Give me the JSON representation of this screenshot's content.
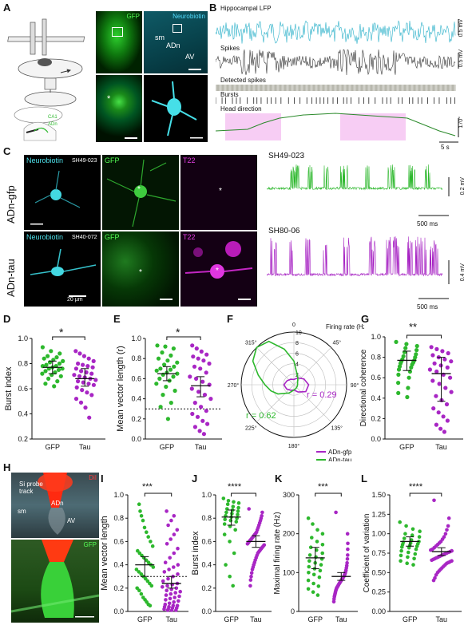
{
  "panels": {
    "A": {
      "letter": "A",
      "micro_labels": {
        "gfp": "GFP",
        "neurobiotin": "Neurobiotin",
        "sm": "sm",
        "adn": "ADn",
        "av": "AV",
        "star": "*"
      },
      "schematic_labels": {
        "ca1": "CA1",
        "adn": "ADn"
      }
    },
    "B": {
      "letter": "B",
      "traces": {
        "lfp": "Hippocampal LFP",
        "spikes": "Spikes",
        "detected": "Detected spikes",
        "bursts": "Bursts",
        "hd": "Head direction"
      },
      "scales": {
        "lfp": "0.5 mV",
        "spikes": "0.5 mV",
        "hd": "170°",
        "time": "5 s"
      }
    },
    "C": {
      "letter": "C",
      "rows": [
        {
          "label": "ADn-gfp",
          "id": "SH49-023",
          "trace_id": "SH49-023",
          "vscale": "0.2 mV",
          "tscale": "500 ms"
        },
        {
          "label": "ADn-tau",
          "id": "SH40-072",
          "trace_id": "SH80-06",
          "vscale": "0.4 mV",
          "tscale": "500 ms"
        }
      ],
      "channels": {
        "neurobiotin": "Neurobiotin",
        "gfp": "GFP",
        "t22": "T22"
      },
      "scalebar": "20 µm",
      "star": "*"
    },
    "D": {
      "letter": "D",
      "star": "*"
    },
    "E": {
      "letter": "E",
      "star": "*"
    },
    "F": {
      "letter": "F",
      "firing_label": "Firing rate (Hz)",
      "angles": [
        "0",
        "45°",
        "90°",
        "135°",
        "180°",
        "225°",
        "270°",
        "315°"
      ],
      "rings": [
        "2",
        "4",
        "6",
        "8",
        "10"
      ],
      "r_tau": "r = 0.62",
      "r_gfp": "r = 0.29",
      "legend": [
        "ADn-gfp",
        "ADn-tau"
      ]
    },
    "G": {
      "letter": "G",
      "stars": "**"
    },
    "H": {
      "letter": "H",
      "dil": "DiI",
      "probe": "Si probe track",
      "sm": "sm",
      "adn": "ADn",
      "av": "AV",
      "gfp": "GFP"
    },
    "I": {
      "letter": "I",
      "stars": "***"
    },
    "J": {
      "letter": "J",
      "stars": "****"
    },
    "K": {
      "letter": "K",
      "stars": "***"
    },
    "L": {
      "letter": "L",
      "stars": "****"
    }
  },
  "colors": {
    "gfp": "#2db82d",
    "tau": "#a826c4",
    "cyan": "#38d6e0",
    "lfp": "#2ab0c9",
    "magenta": "#d21ad2",
    "pink": "#f7cdf4",
    "hd": "#2b8a2b"
  },
  "chart_data": [
    {
      "panel": "D",
      "type": "scatter",
      "ylabel": "Burst index",
      "categories": [
        "GFP",
        "Tau"
      ],
      "ylim": [
        0.2,
        1.0
      ],
      "yticks": [
        0.2,
        0.4,
        0.6,
        0.8,
        1.0
      ],
      "series": [
        {
          "values": [
            0.93,
            0.9,
            0.88,
            0.86,
            0.85,
            0.84,
            0.83,
            0.82,
            0.81,
            0.8,
            0.79,
            0.78,
            0.78,
            0.77,
            0.76,
            0.76,
            0.75,
            0.74,
            0.73,
            0.72,
            0.71,
            0.7,
            0.68,
            0.66,
            0.64,
            0.62
          ],
          "mean": 0.77,
          "err": [
            0.72,
            0.82
          ]
        },
        {
          "values": [
            0.9,
            0.88,
            0.86,
            0.84,
            0.82,
            0.8,
            0.79,
            0.78,
            0.77,
            0.76,
            0.74,
            0.73,
            0.72,
            0.71,
            0.7,
            0.69,
            0.68,
            0.67,
            0.66,
            0.65,
            0.64,
            0.63,
            0.61,
            0.59,
            0.57,
            0.55,
            0.52,
            0.49,
            0.45,
            0.37
          ],
          "mean": 0.68,
          "err": [
            0.62,
            0.76
          ]
        }
      ]
    },
    {
      "panel": "E",
      "type": "scatter",
      "ylabel": "Mean vector length (r)",
      "categories": [
        "GFP",
        "Tau"
      ],
      "ylim": [
        0.0,
        1.0
      ],
      "yticks": [
        0.0,
        0.2,
        0.4,
        0.6,
        0.8,
        1.0
      ],
      "reference_line": 0.3,
      "series": [
        {
          "values": [
            0.93,
            0.92,
            0.9,
            0.86,
            0.83,
            0.8,
            0.78,
            0.76,
            0.74,
            0.72,
            0.7,
            0.69,
            0.68,
            0.66,
            0.65,
            0.64,
            0.62,
            0.6,
            0.58,
            0.55,
            0.52,
            0.48,
            0.44,
            0.36,
            0.32,
            0.2
          ],
          "mean": 0.65,
          "err": [
            0.58,
            0.72
          ]
        },
        {
          "values": [
            0.93,
            0.9,
            0.87,
            0.84,
            0.82,
            0.8,
            0.78,
            0.75,
            0.72,
            0.7,
            0.66,
            0.62,
            0.6,
            0.57,
            0.54,
            0.5,
            0.47,
            0.44,
            0.4,
            0.36,
            0.32,
            0.28,
            0.25,
            0.22,
            0.18,
            0.15,
            0.12,
            0.08,
            0.05
          ],
          "mean": 0.53,
          "err": [
            0.42,
            0.62
          ]
        }
      ]
    },
    {
      "panel": "F",
      "type": "polar",
      "radial_max": 10,
      "series": [
        {
          "name": "ADn-gfp",
          "angles_deg": [
            0,
            30,
            60,
            90,
            120,
            150,
            180,
            210,
            240,
            270,
            300,
            330
          ],
          "rates": [
            1.0,
            1.5,
            2.2,
            2.8,
            2.6,
            1.6,
            1.0,
            1.2,
            1.6,
            1.9,
            1.5,
            1.2
          ]
        },
        {
          "name": "ADn-tau",
          "angles_deg": [
            0,
            15,
            30,
            60,
            90,
            120,
            150,
            180,
            210,
            240,
            255,
            270,
            285,
            300,
            315,
            330,
            345
          ],
          "rates": [
            4.5,
            2.2,
            1.5,
            0.8,
            0.7,
            0.7,
            0.8,
            1.0,
            1.8,
            3.5,
            4.5,
            5.5,
            7.0,
            9.0,
            10.0,
            9.5,
            7.0
          ]
        }
      ]
    },
    {
      "panel": "G",
      "type": "scatter",
      "ylabel": "Directional coherence",
      "categories": [
        "GFP",
        "Tau"
      ],
      "ylim": [
        0.0,
        1.0
      ],
      "yticks": [
        0.0,
        0.2,
        0.4,
        0.6,
        0.8,
        1.0
      ],
      "series": [
        {
          "values": [
            0.95,
            0.93,
            0.91,
            0.89,
            0.87,
            0.85,
            0.83,
            0.81,
            0.8,
            0.78,
            0.77,
            0.76,
            0.75,
            0.74,
            0.73,
            0.71,
            0.7,
            0.68,
            0.66,
            0.63,
            0.6,
            0.55,
            0.5,
            0.45,
            0.41
          ],
          "mean": 0.77,
          "err": [
            0.67,
            0.86
          ]
        },
        {
          "values": [
            0.9,
            0.88,
            0.86,
            0.84,
            0.82,
            0.8,
            0.78,
            0.76,
            0.74,
            0.72,
            0.7,
            0.68,
            0.66,
            0.63,
            0.6,
            0.57,
            0.54,
            0.5,
            0.46,
            0.42,
            0.38,
            0.34,
            0.3,
            0.26,
            0.22,
            0.18,
            0.14,
            0.1,
            0.07
          ],
          "mean": 0.64,
          "err": [
            0.37,
            0.8
          ]
        }
      ]
    },
    {
      "panel": "I",
      "type": "scatter",
      "ylabel": "Mean vector length",
      "categories": [
        "GFP",
        "Tau"
      ],
      "ylim": [
        0.0,
        1.0
      ],
      "yticks": [
        0.0,
        0.2,
        0.4,
        0.6,
        0.8,
        1.0
      ],
      "reference_line": 0.3,
      "series": [
        {
          "values": [
            0.92,
            0.86,
            0.82,
            0.78,
            0.72,
            0.68,
            0.64,
            0.6,
            0.56,
            0.52,
            0.5,
            0.48,
            0.46,
            0.44,
            0.42,
            0.4,
            0.38,
            0.36,
            0.34,
            0.32,
            0.3,
            0.28,
            0.26,
            0.24,
            0.22,
            0.2,
            0.18,
            0.15,
            0.12,
            0.1,
            0.08,
            0.06,
            0.05
          ],
          "mean": 0.4,
          "err": [
            0.3,
            0.47
          ]
        },
        {
          "values": [
            0.86,
            0.82,
            0.78,
            0.74,
            0.7,
            0.66,
            0.62,
            0.58,
            0.54,
            0.5,
            0.46,
            0.42,
            0.4,
            0.38,
            0.36,
            0.34,
            0.32,
            0.3,
            0.28,
            0.26,
            0.24,
            0.23,
            0.22,
            0.21,
            0.2,
            0.19,
            0.18,
            0.17,
            0.16,
            0.15,
            0.14,
            0.13,
            0.12,
            0.11,
            0.1,
            0.09,
            0.08,
            0.07,
            0.06,
            0.05,
            0.05,
            0.04,
            0.04,
            0.03,
            0.03,
            0.02,
            0.02,
            0.01,
            0.01,
            0.01
          ],
          "mean": 0.24,
          "err": [
            0.2,
            0.3
          ]
        }
      ]
    },
    {
      "panel": "J",
      "type": "scatter",
      "ylabel": "Burst index",
      "categories": [
        "GFP",
        "Tau"
      ],
      "ylim": [
        0.0,
        1.0
      ],
      "yticks": [
        0.0,
        0.2,
        0.4,
        0.6,
        0.8,
        1.0
      ],
      "series": [
        {
          "values": [
            0.97,
            0.95,
            0.94,
            0.93,
            0.92,
            0.9,
            0.89,
            0.88,
            0.87,
            0.86,
            0.85,
            0.84,
            0.83,
            0.82,
            0.81,
            0.8,
            0.79,
            0.78,
            0.77,
            0.75,
            0.73,
            0.7,
            0.66,
            0.6,
            0.5,
            0.4,
            0.3,
            0.22
          ],
          "mean": 0.81,
          "err": [
            0.74,
            0.87
          ]
        },
        {
          "values": [
            0.88,
            0.85,
            0.82,
            0.8,
            0.78,
            0.76,
            0.74,
            0.72,
            0.7,
            0.68,
            0.67,
            0.66,
            0.65,
            0.64,
            0.63,
            0.62,
            0.61,
            0.6,
            0.59,
            0.58,
            0.57,
            0.56,
            0.55,
            0.54,
            0.53,
            0.52,
            0.51,
            0.5,
            0.48,
            0.46,
            0.44,
            0.42,
            0.4,
            0.38,
            0.36,
            0.33,
            0.3,
            0.27,
            0.22
          ],
          "mean": 0.6,
          "err": [
            0.55,
            0.65
          ]
        }
      ]
    },
    {
      "panel": "K",
      "type": "scatter",
      "ylabel": "Maximal firing rate (Hz)",
      "categories": [
        "GFP",
        "Tau"
      ],
      "ylim": [
        0,
        300
      ],
      "yticks": [
        0,
        100,
        200,
        300
      ],
      "series": [
        {
          "values": [
            240,
            225,
            210,
            200,
            190,
            180,
            172,
            165,
            158,
            150,
            145,
            140,
            135,
            130,
            125,
            120,
            115,
            110,
            105,
            100,
            95,
            88,
            80,
            72,
            65,
            58,
            50,
            42
          ],
          "mean": 138,
          "err": [
            110,
            165
          ]
        },
        {
          "values": [
            255,
            200,
            175,
            160,
            145,
            135,
            125,
            118,
            112,
            106,
            102,
            98,
            95,
            92,
            90,
            88,
            86,
            84,
            82,
            80,
            78,
            76,
            74,
            72,
            70,
            68,
            66,
            64,
            62,
            60,
            57,
            54,
            50,
            46,
            42,
            38,
            32,
            25
          ],
          "mean": 90,
          "err": [
            80,
            100
          ]
        }
      ]
    },
    {
      "panel": "L",
      "type": "scatter",
      "ylabel": "Coefficient of variation",
      "categories": [
        "GFP",
        "Tau"
      ],
      "ylim": [
        0.0,
        1.5
      ],
      "yticks": [
        0.0,
        0.25,
        0.5,
        0.75,
        1.0,
        1.25,
        1.5
      ],
      "series": [
        {
          "values": [
            1.15,
            1.1,
            1.06,
            1.03,
            1.0,
            0.98,
            0.96,
            0.94,
            0.92,
            0.9,
            0.89,
            0.88,
            0.87,
            0.86,
            0.85,
            0.84,
            0.83,
            0.82,
            0.8,
            0.78,
            0.76,
            0.74,
            0.72,
            0.7,
            0.68,
            0.65,
            0.62,
            0.6
          ],
          "mean": 0.9,
          "err": [
            0.84,
            0.96
          ]
        },
        {
          "values": [
            1.43,
            1.2,
            1.1,
            1.05,
            1.0,
            0.96,
            0.93,
            0.9,
            0.88,
            0.86,
            0.84,
            0.82,
            0.8,
            0.79,
            0.78,
            0.77,
            0.76,
            0.75,
            0.74,
            0.73,
            0.72,
            0.71,
            0.7,
            0.69,
            0.68,
            0.67,
            0.66,
            0.65,
            0.64,
            0.63,
            0.62,
            0.6,
            0.58,
            0.56,
            0.54,
            0.52,
            0.5,
            0.47,
            0.43,
            0.4
          ],
          "mean": 0.77,
          "err": [
            0.72,
            0.82
          ]
        }
      ]
    }
  ]
}
